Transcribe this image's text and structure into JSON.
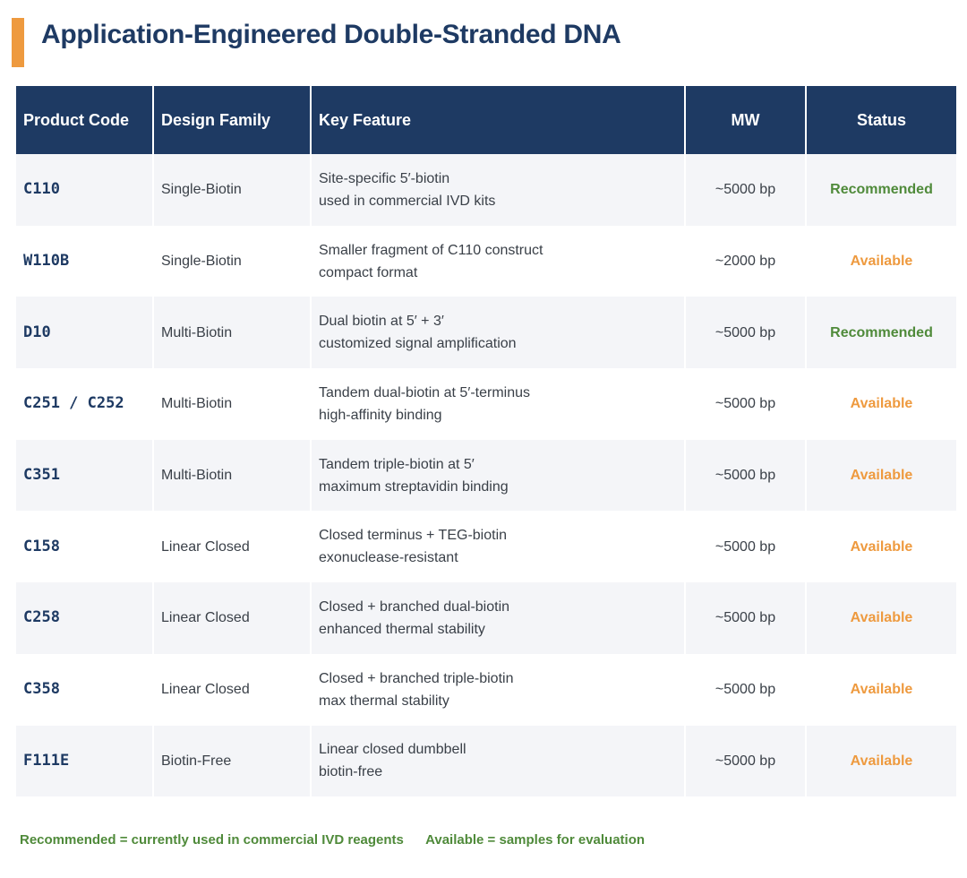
{
  "title": "Application-Engineered Double-Stranded DNA",
  "headers": {
    "code": "Product Code",
    "family": "Design Family",
    "feature": "Key Feature",
    "mw": "MW",
    "status": "Status"
  },
  "rows": [
    {
      "code": "C110",
      "family": "Single-Biotin",
      "feature1": "Site-specific 5′-biotin",
      "feature2": "used in commercial IVD kits",
      "mw": "~5000 bp",
      "status": "Recommended"
    },
    {
      "code": "W110B",
      "family": "Single-Biotin",
      "feature1": "Smaller fragment of C110 construct",
      "feature2": "compact format",
      "mw": "~2000 bp",
      "status": "Available"
    },
    {
      "code": "D10",
      "family": "Multi-Biotin",
      "feature1": "Dual biotin at 5′ + 3′",
      "feature2": "customized signal amplification",
      "mw": "~5000 bp",
      "status": "Recommended"
    },
    {
      "code": "C251 / C252",
      "family": "Multi-Biotin",
      "feature1": "Tandem dual-biotin at 5′-terminus",
      "feature2": "high-affinity binding",
      "mw": "~5000 bp",
      "status": "Available"
    },
    {
      "code": "C351",
      "family": "Multi-Biotin",
      "feature1": "Tandem triple-biotin at 5′",
      "feature2": "maximum streptavidin binding",
      "mw": "~5000 bp",
      "status": "Available"
    },
    {
      "code": "C158",
      "family": "Linear Closed",
      "feature1": "Closed terminus + TEG-biotin",
      "feature2": "exonuclease-resistant",
      "mw": "~5000 bp",
      "status": "Available"
    },
    {
      "code": "C258",
      "family": "Linear Closed",
      "feature1": "Closed + branched dual-biotin",
      "feature2": "enhanced thermal stability",
      "mw": "~5000 bp",
      "status": "Available"
    },
    {
      "code": "C358",
      "family": "Linear Closed",
      "feature1": "Closed + branched triple-biotin",
      "feature2": "max thermal stability",
      "mw": "~5000 bp",
      "status": "Available"
    },
    {
      "code": "F111E",
      "family": "Biotin-Free",
      "feature1": "Linear closed dumbbell",
      "feature2": "biotin-free",
      "mw": "~5000 bp",
      "status": "Available"
    }
  ],
  "footer": {
    "recommended": "Recommended = currently used in commercial IVD reagents",
    "available": "Available = samples for evaluation"
  },
  "colors": {
    "header_bg": "#1e3a63",
    "accent_bar": "#ee9a3f",
    "recommended": "#4f8a3a",
    "available": "#ee9a3f"
  }
}
